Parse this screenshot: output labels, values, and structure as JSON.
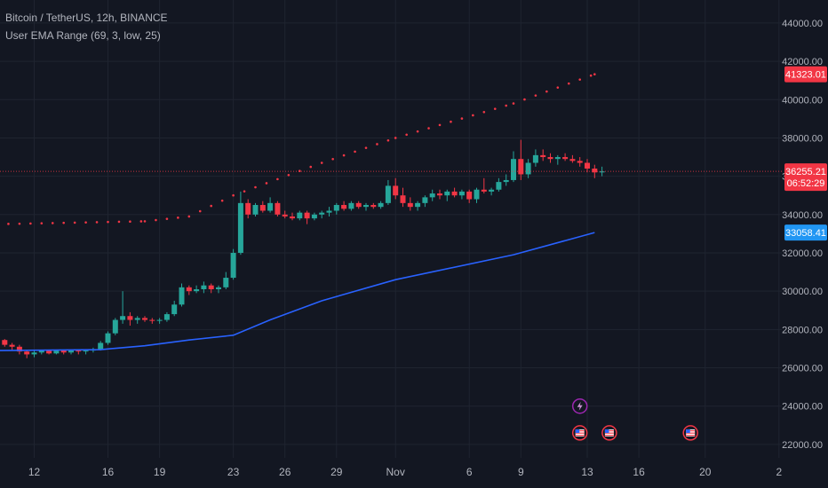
{
  "header": {
    "symbol_line": "Bitcoin / TetherUS, 12h, BINANCE",
    "indicator_line": "User EMA Range (69, 3, low, 25)"
  },
  "colors": {
    "background": "#131722",
    "grid": "#1f2430",
    "up": "#26a69a",
    "down": "#f23645",
    "ema_line": "#2962ff",
    "ema_badge": "#2196f3",
    "dotted_line": "#f23645",
    "text": "#b2b5be"
  },
  "chart_data": {
    "type": "candlestick",
    "y_axis": {
      "ylim": [
        21300,
        45200
      ],
      "tick_labels": [
        "22000.00",
        "24000.00",
        "26000.00",
        "28000.00",
        "30000.00",
        "32000.00",
        "34000.00",
        "36000.00",
        "38000.00",
        "40000.00",
        "42000.00",
        "44000.00"
      ],
      "tick_values": [
        22000,
        24000,
        26000,
        28000,
        30000,
        32000,
        34000,
        36000,
        38000,
        40000,
        42000,
        44000
      ]
    },
    "x_axis": {
      "tick_labels": [
        "12",
        "16",
        "19",
        "23",
        "26",
        "29",
        "Nov",
        "6",
        "9",
        "13",
        "16",
        "20",
        "2"
      ],
      "tick_index": [
        5,
        15,
        22,
        32,
        39,
        46,
        54,
        64,
        71,
        80,
        87,
        96,
        106
      ]
    },
    "price_labels": [
      {
        "name": "dotted_upper",
        "text": "41323.01",
        "value": 41323.01,
        "color": "#f23645"
      },
      {
        "name": "last_price",
        "text": "36255.21",
        "value": 36255.21,
        "color": "#f23645"
      },
      {
        "name": "countdown",
        "text": "06:52:29",
        "value": 35650,
        "color": "#f23645"
      },
      {
        "name": "ema",
        "text": "33058.41",
        "value": 33058.41,
        "color": "#2196f3"
      }
    ],
    "last_price": 36255.21,
    "candles": [
      [
        27650,
        27700,
        27400,
        27450
      ],
      [
        27450,
        27500,
        27100,
        27200
      ],
      [
        27200,
        27300,
        26900,
        27100
      ],
      [
        27100,
        27200,
        26700,
        26850
      ],
      [
        26850,
        26950,
        26500,
        26700
      ],
      [
        26700,
        26900,
        26550,
        26800
      ],
      [
        26800,
        26950,
        26700,
        26900
      ],
      [
        26900,
        26950,
        26700,
        26750
      ],
      [
        26750,
        26950,
        26700,
        26900
      ],
      [
        26900,
        26950,
        26700,
        26800
      ],
      [
        26800,
        26950,
        26700,
        26900
      ],
      [
        26900,
        26950,
        26700,
        26850
      ],
      [
        26850,
        26950,
        26700,
        26900
      ],
      [
        26900,
        27050,
        26800,
        26950
      ],
      [
        26950,
        27400,
        26900,
        27300
      ],
      [
        27300,
        27900,
        27200,
        27800
      ],
      [
        27800,
        28600,
        27700,
        28500
      ],
      [
        28500,
        30000,
        28300,
        28700
      ],
      [
        28700,
        28900,
        28200,
        28500
      ],
      [
        28500,
        28700,
        28300,
        28600
      ],
      [
        28600,
        28700,
        28400,
        28500
      ],
      [
        28500,
        28600,
        28300,
        28450
      ],
      [
        28450,
        28600,
        28300,
        28500
      ],
      [
        28500,
        28900,
        28400,
        28800
      ],
      [
        28800,
        29500,
        28700,
        29300
      ],
      [
        29300,
        30400,
        29200,
        30200
      ],
      [
        30200,
        30300,
        29800,
        30000
      ],
      [
        30000,
        30300,
        29900,
        30100
      ],
      [
        30100,
        30500,
        29900,
        30300
      ],
      [
        30300,
        30400,
        29900,
        30100
      ],
      [
        30100,
        30300,
        29900,
        30200
      ],
      [
        30200,
        31000,
        30100,
        30700
      ],
      [
        30700,
        32200,
        30600,
        32000
      ],
      [
        32000,
        35200,
        31900,
        34600
      ],
      [
        34600,
        34800,
        33800,
        34000
      ],
      [
        34000,
        34600,
        33900,
        34500
      ],
      [
        34500,
        34700,
        34100,
        34200
      ],
      [
        34200,
        34900,
        34100,
        34600
      ],
      [
        34600,
        34700,
        33900,
        34000
      ],
      [
        34000,
        34200,
        33800,
        33900
      ],
      [
        33900,
        34100,
        33700,
        33800
      ],
      [
        33800,
        34200,
        33700,
        34100
      ],
      [
        34100,
        34200,
        33500,
        33800
      ],
      [
        33800,
        34100,
        33700,
        34000
      ],
      [
        34000,
        34200,
        33800,
        34100
      ],
      [
        34100,
        34400,
        33900,
        34200
      ],
      [
        34200,
        34600,
        34000,
        34500
      ],
      [
        34500,
        34700,
        34200,
        34300
      ],
      [
        34300,
        34700,
        34200,
        34600
      ],
      [
        34600,
        34700,
        34300,
        34400
      ],
      [
        34400,
        34600,
        34200,
        34500
      ],
      [
        34500,
        34600,
        34300,
        34400
      ],
      [
        34400,
        34700,
        34300,
        34600
      ],
      [
        34600,
        35800,
        34500,
        35500
      ],
      [
        35500,
        35900,
        34800,
        35000
      ],
      [
        35000,
        35400,
        34400,
        34600
      ],
      [
        34600,
        34900,
        34200,
        34400
      ],
      [
        34400,
        34700,
        34200,
        34600
      ],
      [
        34600,
        35000,
        34400,
        34900
      ],
      [
        34900,
        35300,
        34700,
        35100
      ],
      [
        35100,
        35300,
        34800,
        35000
      ],
      [
        35000,
        35300,
        34700,
        35200
      ],
      [
        35200,
        35400,
        34900,
        35000
      ],
      [
        35000,
        35300,
        34800,
        35200
      ],
      [
        35200,
        35300,
        34600,
        34800
      ],
      [
        34800,
        35400,
        34600,
        35300
      ],
      [
        35300,
        35900,
        35100,
        35200
      ],
      [
        35200,
        35400,
        35000,
        35300
      ],
      [
        35300,
        35900,
        35200,
        35700
      ],
      [
        35700,
        36100,
        35500,
        35800
      ],
      [
        35800,
        37300,
        35700,
        36900
      ],
      [
        36900,
        37900,
        35800,
        36100
      ],
      [
        36100,
        36900,
        35900,
        36700
      ],
      [
        36700,
        37400,
        36500,
        37100
      ],
      [
        37100,
        37400,
        36800,
        37000
      ],
      [
        37000,
        37200,
        36700,
        36900
      ],
      [
        36900,
        37100,
        36600,
        37000
      ],
      [
        37000,
        37200,
        36800,
        36900
      ],
      [
        36900,
        37100,
        36700,
        36800
      ],
      [
        36800,
        37000,
        36500,
        36700
      ],
      [
        36700,
        36900,
        36200,
        36400
      ],
      [
        36400,
        36600,
        35900,
        36200
      ],
      [
        36200,
        36500,
        36000,
        36255.21
      ]
    ],
    "ema": [
      [
        0,
        26900
      ],
      [
        14,
        26950
      ],
      [
        20,
        27150
      ],
      [
        26,
        27450
      ],
      [
        32,
        27700
      ],
      [
        37,
        28500
      ],
      [
        44,
        29500
      ],
      [
        54,
        30600
      ],
      [
        70,
        31900
      ],
      [
        81,
        33058.41
      ]
    ],
    "dotted_line": [
      [
        0,
        33500
      ],
      [
        20,
        33650
      ],
      [
        26,
        33900
      ],
      [
        32,
        35000
      ],
      [
        44,
        36700
      ],
      [
        54,
        38000
      ],
      [
        70,
        39800
      ],
      [
        81,
        41323.01
      ]
    ],
    "event_markers": [
      {
        "type": "lightning",
        "index": 79,
        "value": 24000
      },
      {
        "type": "flag",
        "index": 79,
        "value": 22600
      },
      {
        "type": "flag",
        "index": 83,
        "value": 22600
      },
      {
        "type": "flag",
        "index": 94,
        "value": 22600
      }
    ]
  }
}
